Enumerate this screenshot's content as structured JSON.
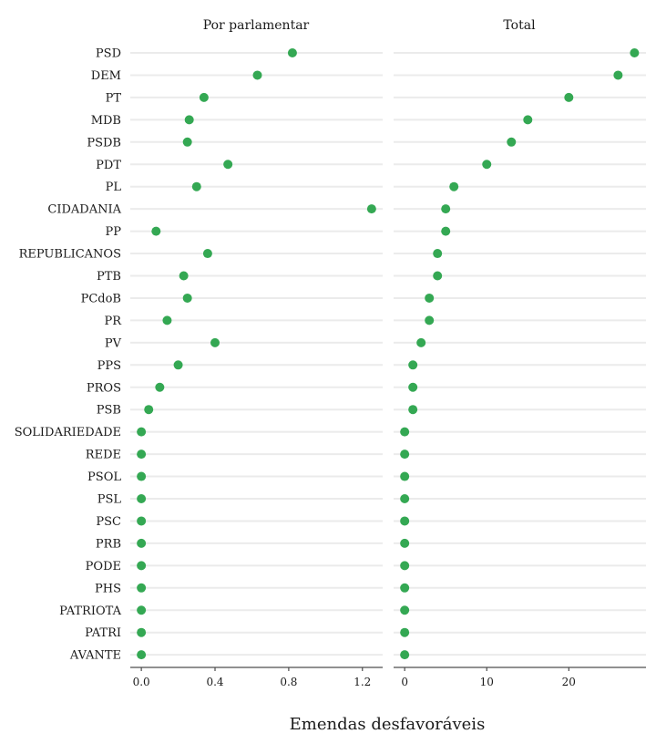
{
  "chart_data": {
    "type": "scatter",
    "xlabel": "Emendas desfavoráveis",
    "point_color": "#34a853",
    "categories": [
      "PSD",
      "DEM",
      "PT",
      "MDB",
      "PSDB",
      "PDT",
      "PL",
      "CIDADANIA",
      "PP",
      "REPUBLICANOS",
      "PTB",
      "PCdoB",
      "PR",
      "PV",
      "PPS",
      "PROS",
      "PSB",
      "SOLIDARIEDADE",
      "REDE",
      "PSOL",
      "PSL",
      "PSC",
      "PRB",
      "PODE",
      "PHS",
      "PATRIOTA",
      "PATRI",
      "AVANTE"
    ],
    "panels": [
      {
        "title": "Por parlamentar",
        "xlim": [
          -0.06,
          1.31
        ],
        "ticks": [
          0.0,
          0.4,
          0.8,
          1.2
        ],
        "tick_labels": [
          "0.0",
          "0.4",
          "0.8",
          "1.2"
        ],
        "values": [
          0.82,
          0.63,
          0.34,
          0.26,
          0.25,
          0.47,
          0.3,
          1.25,
          0.08,
          0.36,
          0.23,
          0.25,
          0.14,
          0.4,
          0.2,
          0.1,
          0.04,
          0.0,
          0.0,
          0.0,
          0.0,
          0.0,
          0.0,
          0.0,
          0.0,
          0.0,
          0.0,
          0.0
        ]
      },
      {
        "title": "Total",
        "xlim": [
          -1.35,
          29.4
        ],
        "ticks": [
          0,
          10,
          20
        ],
        "tick_labels": [
          "0",
          "10",
          "20"
        ],
        "values": [
          28,
          26,
          20,
          15,
          13,
          10,
          6,
          5,
          5,
          4,
          4,
          3,
          3,
          2,
          1,
          1,
          1,
          0,
          0,
          0,
          0,
          0,
          0,
          0,
          0,
          0,
          0,
          0
        ]
      }
    ]
  }
}
